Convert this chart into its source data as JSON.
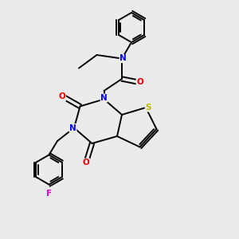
{
  "background_color": "#ebebeb",
  "atom_colors": {
    "C": "#000000",
    "N": "#0000ee",
    "O": "#ee0000",
    "S": "#bbbb00",
    "F": "#dd00dd",
    "H": "#000000"
  },
  "bond_color": "#000000",
  "bond_width": 1.4,
  "figsize": [
    3.0,
    3.0
  ],
  "dpi": 100,
  "xlim": [
    0,
    10
  ],
  "ylim": [
    0,
    10
  ]
}
